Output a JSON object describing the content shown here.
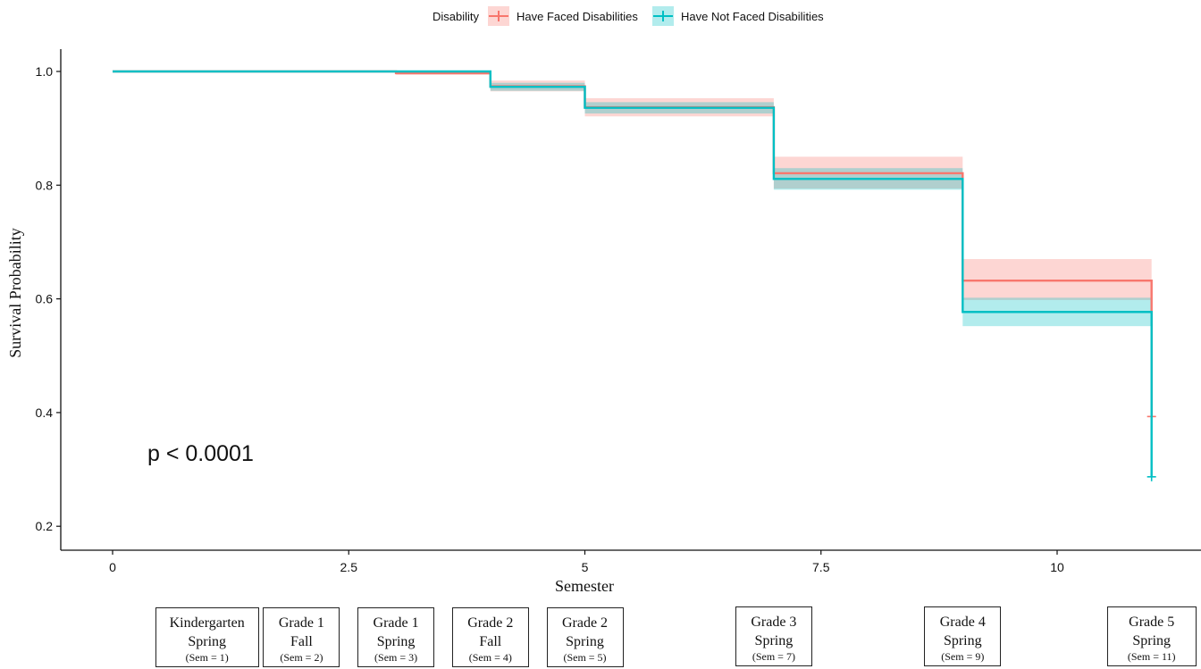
{
  "chart_data": {
    "type": "step",
    "title": "",
    "xlabel": "Semester",
    "ylabel": "Survival Probability",
    "xlim": [
      -1.1,
      11.45
    ],
    "ylim": [
      0.16,
      1.04
    ],
    "x_ticks": [
      0,
      2.5,
      5,
      7.5,
      10
    ],
    "x_tick_labels": [
      "0",
      "2.5",
      "5",
      "7.5",
      "10"
    ],
    "y_ticks": [
      0.2,
      0.4,
      0.6,
      0.8,
      1.0
    ],
    "y_tick_labels": [
      "0.2",
      "0.4",
      "0.6",
      "0.8",
      "1.0"
    ],
    "grid": false,
    "legend": {
      "title": "Disability",
      "position": "top",
      "entries": [
        "Have Faced Disabilities",
        "Have Not Faced Disabilities"
      ]
    },
    "annotation": "p < 0.0001",
    "series": [
      {
        "name": "Have Faced Disabilities",
        "color": "#F8766D",
        "steps": [
          {
            "x": 0,
            "y": 1.0,
            "lower": 1.0,
            "upper": 1.0
          },
          {
            "x": 3,
            "y": 0.997,
            "lower": 0.994,
            "upper": 1.0
          },
          {
            "x": 4,
            "y": 0.974,
            "lower": 0.965,
            "upper": 0.984
          },
          {
            "x": 5,
            "y": 0.937,
            "lower": 0.921,
            "upper": 0.953
          },
          {
            "x": 7,
            "y": 0.821,
            "lower": 0.794,
            "upper": 0.85
          },
          {
            "x": 9,
            "y": 0.632,
            "lower": 0.598,
            "upper": 0.67
          },
          {
            "x": 11,
            "y": 0.393,
            "lower": 0.393,
            "upper": 0.393
          }
        ],
        "censor_marks": [
          {
            "x": 11,
            "y": 0.393
          }
        ]
      },
      {
        "name": "Have Not Faced Disabilities",
        "color": "#00BFC4",
        "steps": [
          {
            "x": 0,
            "y": 1.0,
            "lower": 1.0,
            "upper": 1.0
          },
          {
            "x": 4,
            "y": 0.973,
            "lower": 0.966,
            "upper": 0.98
          },
          {
            "x": 5,
            "y": 0.936,
            "lower": 0.926,
            "upper": 0.946
          },
          {
            "x": 7,
            "y": 0.811,
            "lower": 0.792,
            "upper": 0.83
          },
          {
            "x": 9,
            "y": 0.577,
            "lower": 0.552,
            "upper": 0.602
          },
          {
            "x": 11,
            "y": 0.287,
            "lower": 0.287,
            "upper": 0.287
          }
        ],
        "censor_marks": [
          {
            "x": 11,
            "y": 0.287
          }
        ]
      }
    ]
  },
  "semester_boxes": [
    {
      "x": 1,
      "line1": "Kindergarten",
      "line2": "Spring",
      "line3": "(Sem = 1)"
    },
    {
      "x": 2,
      "line1": "Grade 1",
      "line2": "Fall",
      "line3": "(Sem = 2)"
    },
    {
      "x": 3,
      "line1": "Grade 1",
      "line2": "Spring",
      "line3": "(Sem = 3)"
    },
    {
      "x": 4,
      "line1": "Grade 2",
      "line2": "Fall",
      "line3": "(Sem = 4)"
    },
    {
      "x": 5,
      "line1": "Grade 2",
      "line2": "Spring",
      "line3": "(Sem = 5)"
    },
    {
      "x": 7,
      "line1": "Grade 3",
      "line2": "Spring",
      "line3": "(Sem = 7)"
    },
    {
      "x": 9,
      "line1": "Grade 4",
      "line2": "Spring",
      "line3": "(Sem = 9)"
    },
    {
      "x": 11,
      "line1": "Grade 5",
      "line2": "Spring",
      "line3": "(Sem = 11)"
    }
  ]
}
